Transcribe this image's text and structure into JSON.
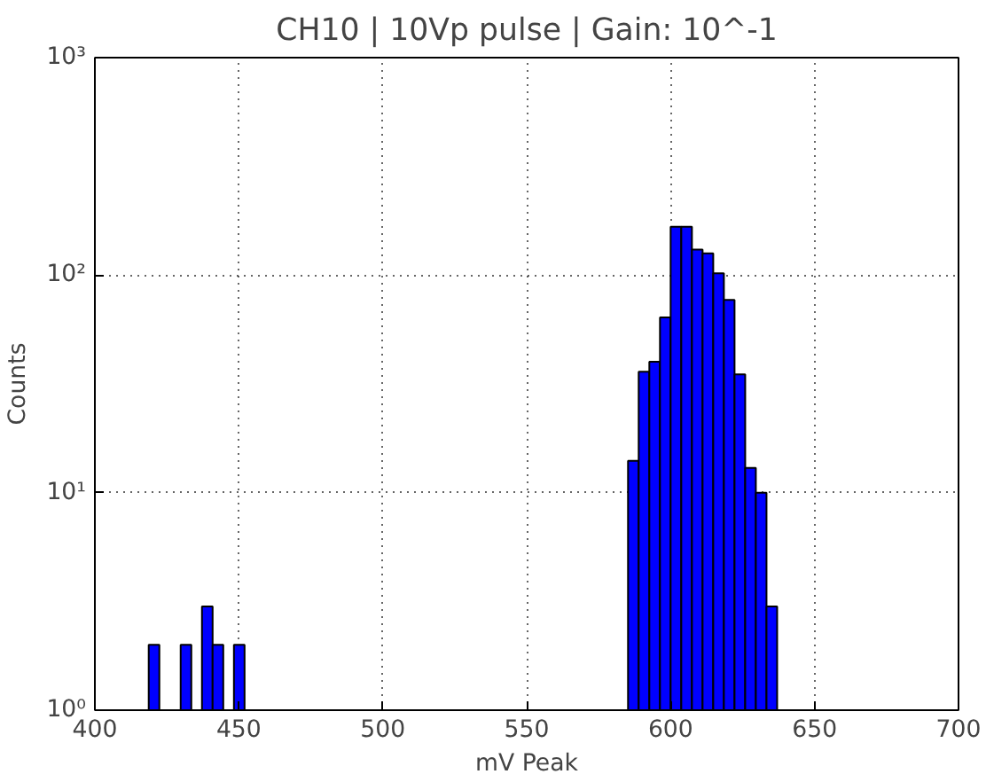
{
  "chart_data": {
    "type": "histogram",
    "title": "CH10 | 10Vp pulse | Gain: 10^-1",
    "xlabel": "mV Peak",
    "ylabel": "Counts",
    "color": "#0000ff",
    "log": true,
    "grid": true,
    "line_style": "dotted",
    "bins": [
      415.0,
      418.7,
      422.4,
      426.1,
      429.8,
      433.5,
      437.2,
      440.9,
      444.6,
      448.3,
      452.0,
      455.7,
      459.4,
      463.1,
      466.8,
      470.5,
      474.2,
      477.9,
      481.6,
      485.3,
      489.0,
      492.7,
      496.4,
      500.1,
      503.8,
      507.5,
      511.2,
      514.9,
      518.6,
      522.3,
      526.0,
      529.7,
      533.4,
      537.1,
      540.8,
      544.5,
      548.2,
      551.9,
      555.6,
      559.3,
      563.0,
      566.7,
      570.4,
      574.1,
      577.8,
      581.5,
      585.2,
      588.9,
      592.6,
      596.3,
      600.0,
      603.7,
      607.4,
      611.1,
      614.8,
      618.5,
      622.2,
      625.9,
      629.6,
      633.3,
      637.0,
      640.7,
      644.4,
      648.1,
      651.8,
      655.5,
      659.2,
      662.9,
      666.6,
      670.3
    ],
    "values": [
      null,
      2,
      null,
      null,
      2,
      null,
      3,
      2,
      null,
      2,
      null,
      null,
      null,
      null,
      null,
      null,
      null,
      null,
      null,
      null,
      null,
      null,
      null,
      null,
      null,
      null,
      null,
      null,
      null,
      null,
      null,
      null,
      null,
      null,
      null,
      null,
      null,
      null,
      null,
      null,
      null,
      null,
      null,
      null,
      null,
      null,
      14,
      36,
      40,
      64,
      167,
      167,
      131,
      126,
      102,
      77,
      35,
      13,
      10,
      3,
      null,
      null,
      null,
      null,
      null,
      null,
      null,
      null,
      null
    ],
    "xlim": [
      400,
      700
    ],
    "xticks": [
      400,
      450,
      500,
      550,
      600,
      650,
      700
    ],
    "ylim": [
      1,
      1000
    ],
    "yticks": [
      {
        "value": 1,
        "label": "10⁰"
      },
      {
        "value": 10,
        "label": "10¹"
      },
      {
        "value": 100,
        "label": "10²"
      },
      {
        "value": 1000,
        "label": "10³"
      }
    ]
  }
}
